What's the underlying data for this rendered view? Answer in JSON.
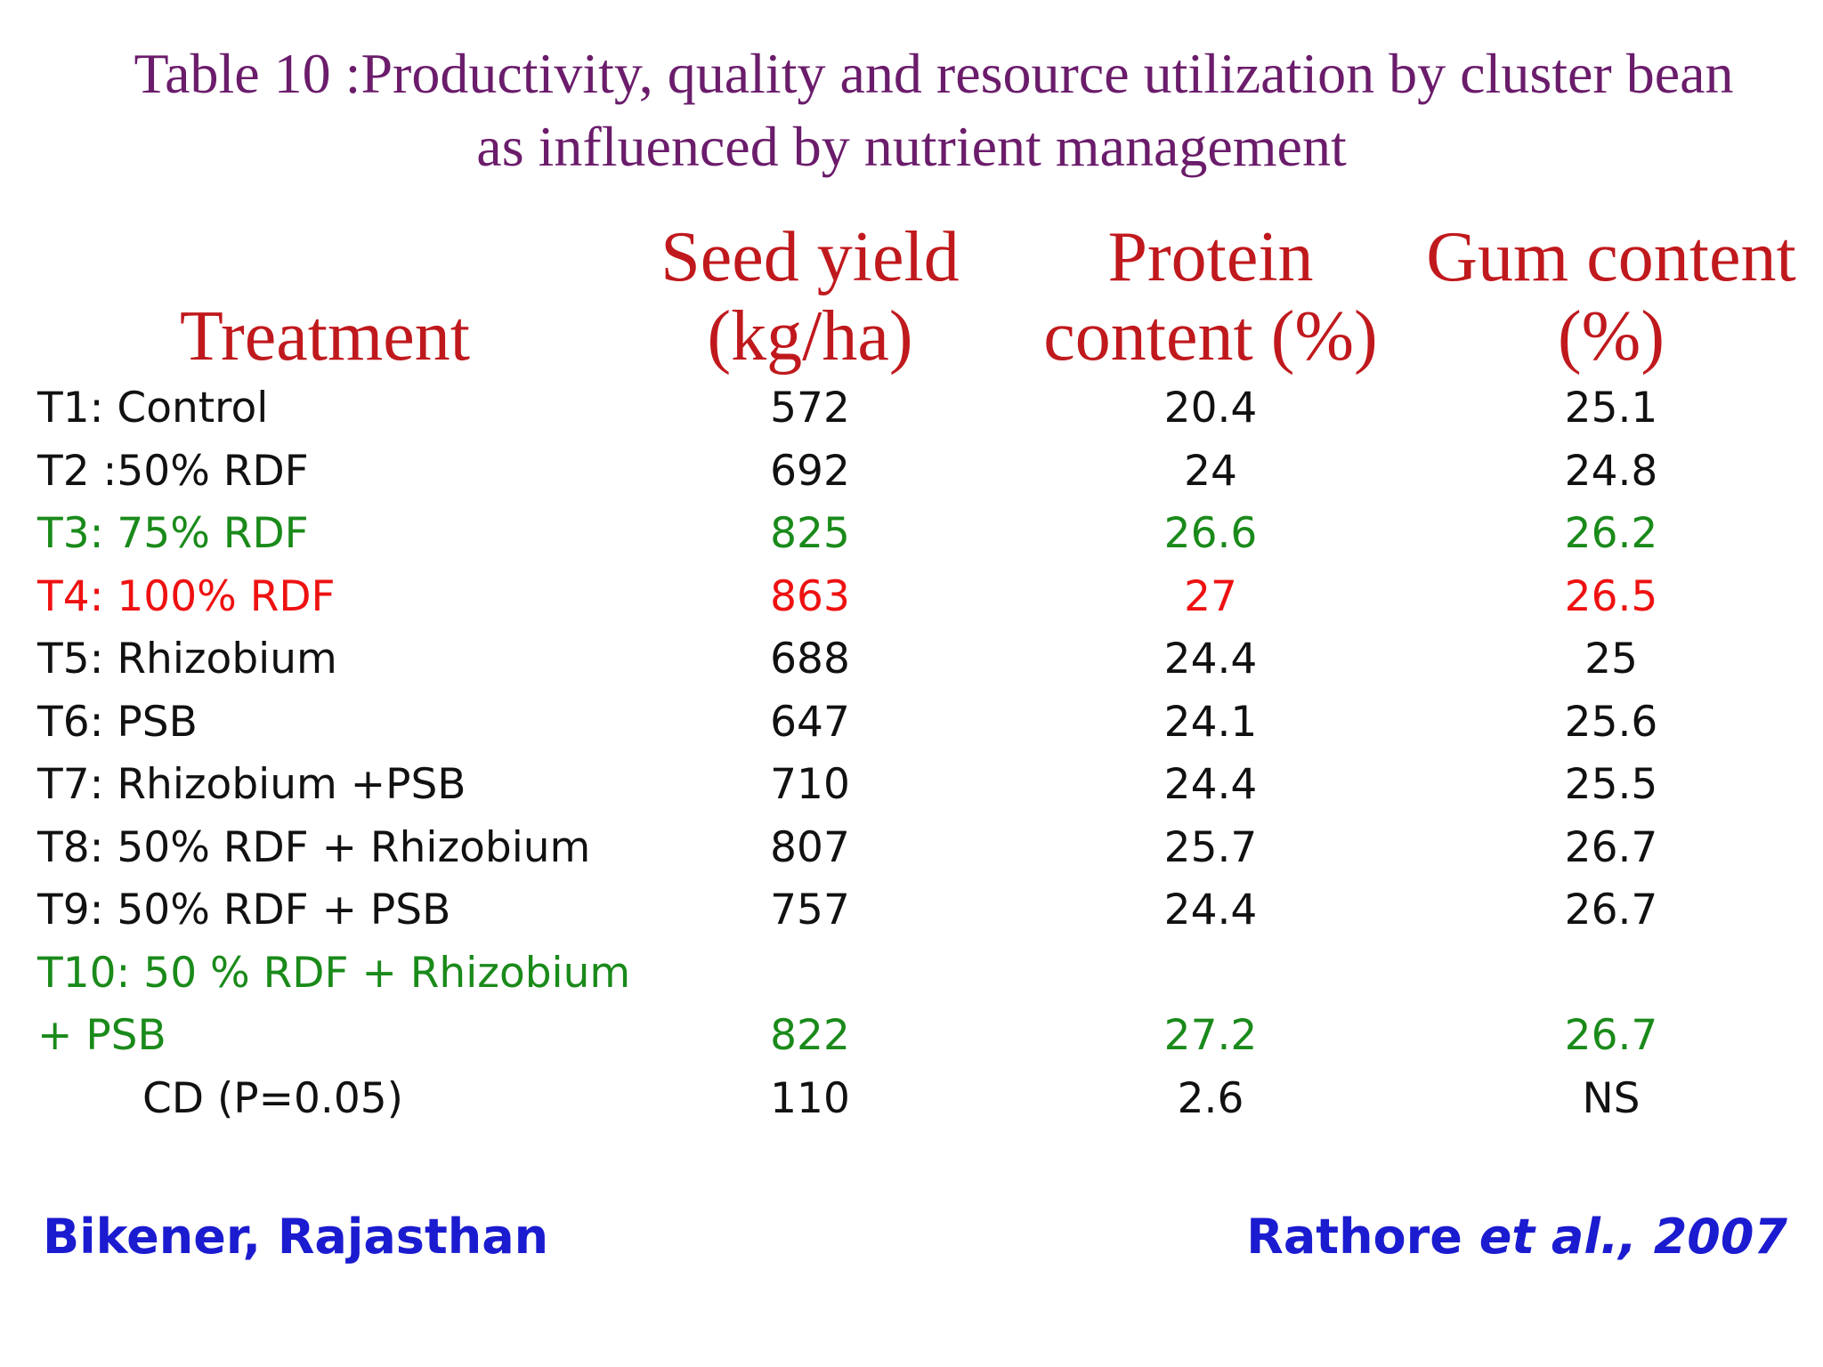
{
  "title": {
    "line1": "Table 10 :Productivity, quality and resource utilization by cluster bean",
    "line2": "as influenced by nutrient management"
  },
  "headers": {
    "treatment": "Treatment",
    "seed_yield": [
      "Seed yield",
      "(kg/ha)"
    ],
    "protein": [
      "Protein",
      "content (%)"
    ],
    "gum": [
      "Gum content",
      "(%)"
    ]
  },
  "rows": [
    {
      "treatment": "T1: Control",
      "seed": "572",
      "protein": "20.4",
      "gum": "25.1",
      "color": "default"
    },
    {
      "treatment": "T2 :50% RDF",
      "seed": "692",
      "protein": "24",
      "gum": "24.8",
      "color": "default"
    },
    {
      "treatment": "T3: 75% RDF",
      "seed": "825",
      "protein": "26.6",
      "gum": "26.2",
      "color": "green"
    },
    {
      "treatment": "T4: 100% RDF",
      "seed": "863",
      "protein": "27",
      "gum": "26.5",
      "color": "red"
    },
    {
      "treatment": "T5: Rhizobium",
      "seed": "688",
      "protein": "24.4",
      "gum": "25",
      "color": "default"
    },
    {
      "treatment": "T6: PSB",
      "seed": "647",
      "protein": "24.1",
      "gum": "25.6",
      "color": "default"
    },
    {
      "treatment": "T7: Rhizobium +PSB",
      "seed": "710",
      "protein": "24.4",
      "gum": "25.5",
      "color": "default"
    },
    {
      "treatment": "T8: 50% RDF + Rhizobium",
      "seed": "807",
      "protein": "25.7",
      "gum": "26.7",
      "color": "default"
    },
    {
      "treatment": "T9: 50% RDF + PSB",
      "seed": "757",
      "protein": "24.4",
      "gum": "26.7",
      "color": "default"
    },
    {
      "treatment": [
        "T10: 50 % RDF + Rhizobium",
        "+ PSB"
      ],
      "seed": "822",
      "protein": "27.2",
      "gum": "26.7",
      "color": "green"
    },
    {
      "treatment": "CD (P=0.05)",
      "seed": "110",
      "protein": "2.6",
      "gum": "NS",
      "color": "default"
    }
  ],
  "footer": {
    "location": "Bikener, Rajasthan",
    "citation_author": "Rathore",
    "citation_etal": "et al., 2007"
  },
  "colors": {
    "title": "#6b1c6b",
    "header": "#c0191d",
    "text": "#111111",
    "highlight_green": "#1a8a1a",
    "highlight_red": "#ee1111",
    "footer": "#1b1bd0"
  }
}
